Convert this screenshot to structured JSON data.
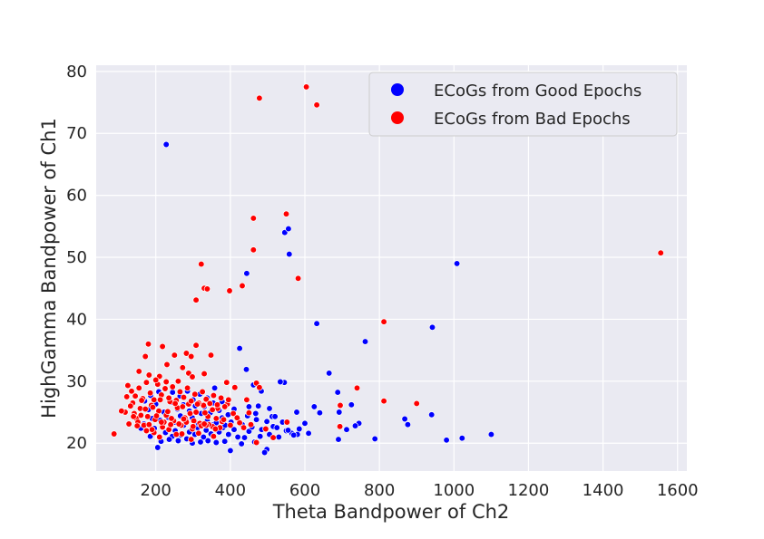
{
  "colors": {
    "plot_background": "#eaeaf2",
    "grid": "#ffffff",
    "good": "#0000ff",
    "bad": "#ff0000",
    "point_edge": "#ffffff"
  },
  "chart_data": {
    "type": "scatter",
    "title": "",
    "xlabel": "Theta Bandpower of Ch2",
    "ylabel": "HighGamma Bandpower of Ch1",
    "xlim": [
      40,
      1625
    ],
    "ylim": [
      15.5,
      81
    ],
    "xticks": [
      200,
      400,
      600,
      800,
      1000,
      1200,
      1400,
      1600
    ],
    "yticks": [
      20,
      30,
      40,
      50,
      60,
      70,
      80
    ],
    "grid": true,
    "legend_position": "top-right",
    "series": [
      {
        "name": "ECoGs from Good Epochs",
        "color": "#0000ff",
        "points": [
          [
            228,
            68.2
          ],
          [
            1008,
            49.0
          ],
          [
            546,
            54.0
          ],
          [
            556,
            54.6
          ],
          [
            558,
            50.5
          ],
          [
            444,
            47.4
          ],
          [
            632,
            39.3
          ],
          [
            942,
            38.7
          ],
          [
            762,
            36.4
          ],
          [
            425,
            35.3
          ],
          [
            443,
            31.9
          ],
          [
            665,
            31.3
          ],
          [
            545,
            29.8
          ],
          [
            534,
            29.9
          ],
          [
            462,
            29.4
          ],
          [
            483,
            28.4
          ],
          [
            688,
            28.2
          ],
          [
            578,
            25.0
          ],
          [
            625,
            25.9
          ],
          [
            640,
            24.9
          ],
          [
            692,
            25.0
          ],
          [
            725,
            26.2
          ],
          [
            745,
            23.2
          ],
          [
            735,
            22.8
          ],
          [
            868,
            23.9
          ],
          [
            876,
            23.0
          ],
          [
            940,
            24.6
          ],
          [
            1022,
            20.8
          ],
          [
            980,
            20.5
          ],
          [
            1100,
            21.4
          ],
          [
            788,
            20.7
          ],
          [
            712,
            22.2
          ],
          [
            690,
            20.6
          ],
          [
            600,
            23.2
          ],
          [
            610,
            21.6
          ],
          [
            580,
            21.4
          ],
          [
            565,
            21.6
          ],
          [
            550,
            22.0
          ],
          [
            530,
            21.0
          ],
          [
            515,
            22.7
          ],
          [
            505,
            21.4
          ],
          [
            498,
            19.0
          ],
          [
            492,
            18.5
          ],
          [
            480,
            21.1
          ],
          [
            465,
            20.2
          ],
          [
            450,
            21.9
          ],
          [
            438,
            20.9
          ],
          [
            430,
            19.9
          ],
          [
            420,
            21.0
          ],
          [
            410,
            22.2
          ],
          [
            400,
            18.8
          ],
          [
            395,
            21.4
          ],
          [
            385,
            20.3
          ],
          [
            380,
            22.5
          ],
          [
            370,
            21.8
          ],
          [
            362,
            20.1
          ],
          [
            355,
            23.0
          ],
          [
            348,
            21.5
          ],
          [
            340,
            20.4
          ],
          [
            335,
            22.1
          ],
          [
            328,
            21.0
          ],
          [
            320,
            20.2
          ],
          [
            312,
            22.5
          ],
          [
            305,
            21.4
          ],
          [
            298,
            20.0
          ],
          [
            290,
            21.8
          ],
          [
            283,
            20.7
          ],
          [
            275,
            22.9
          ],
          [
            268,
            21.3
          ],
          [
            260,
            20.4
          ],
          [
            252,
            22.0
          ],
          [
            244,
            21.1
          ],
          [
            236,
            20.6
          ],
          [
            226,
            21.7
          ],
          [
            214,
            20.3
          ],
          [
            205,
            19.3
          ],
          [
            196,
            22.4
          ],
          [
            185,
            21.1
          ],
          [
            168,
            23.1
          ],
          [
            160,
            22.4
          ],
          [
            150,
            23.6
          ],
          [
            142,
            24.2
          ],
          [
            180,
            25.4
          ],
          [
            190,
            24.0
          ],
          [
            200,
            26.3
          ],
          [
            212,
            23.7
          ],
          [
            222,
            25.0
          ],
          [
            233,
            24.2
          ],
          [
            242,
            26.6
          ],
          [
            250,
            23.4
          ],
          [
            258,
            25.5
          ],
          [
            266,
            24.4
          ],
          [
            274,
            26.2
          ],
          [
            282,
            23.6
          ],
          [
            290,
            25.2
          ],
          [
            298,
            24.1
          ],
          [
            306,
            26.0
          ],
          [
            314,
            23.2
          ],
          [
            322,
            24.8
          ],
          [
            330,
            25.9
          ],
          [
            338,
            23.6
          ],
          [
            346,
            24.9
          ],
          [
            354,
            26.5
          ],
          [
            362,
            23.3
          ],
          [
            370,
            25.3
          ],
          [
            378,
            24.1
          ],
          [
            386,
            22.9
          ],
          [
            394,
            24.6
          ],
          [
            402,
            23.4
          ],
          [
            410,
            25.5
          ],
          [
            420,
            24.0
          ],
          [
            432,
            23.0
          ],
          [
            446,
            24.4
          ],
          [
            458,
            22.6
          ],
          [
            470,
            23.8
          ],
          [
            484,
            22.2
          ],
          [
            498,
            23.5
          ],
          [
            512,
            24.3
          ],
          [
            525,
            22.5
          ],
          [
            540,
            23.4
          ],
          [
            555,
            22.1
          ],
          [
            570,
            21.3
          ],
          [
            585,
            22.3
          ],
          [
            245,
            28.2
          ],
          [
            265,
            27.6
          ],
          [
            285,
            28.4
          ],
          [
            300,
            27.0
          ],
          [
            318,
            27.9
          ],
          [
            338,
            27.3
          ],
          [
            358,
            28.9
          ],
          [
            378,
            26.7
          ],
          [
            208,
            28.3
          ],
          [
            186,
            27.7
          ],
          [
            170,
            26.8
          ],
          [
            158,
            25.5
          ],
          [
            450,
            25.9
          ],
          [
            475,
            26.0
          ],
          [
            505,
            25.6
          ],
          [
            520,
            24.3
          ],
          [
            468,
            24.8
          ]
        ]
      },
      {
        "name": "ECoGs from Bad Epochs",
        "color": "#ff0000",
        "points": [
          [
            604,
            77.5
          ],
          [
            632,
            74.6
          ],
          [
            478,
            75.7
          ],
          [
            1555,
            50.7
          ],
          [
            550,
            57.0
          ],
          [
            462,
            56.3
          ],
          [
            462,
            51.2
          ],
          [
            582,
            46.6
          ],
          [
            322,
            48.9
          ],
          [
            330,
            45.0
          ],
          [
            338,
            44.9
          ],
          [
            398,
            44.6
          ],
          [
            432,
            45.4
          ],
          [
            308,
            43.1
          ],
          [
            812,
            39.6
          ],
          [
            180,
            36.0
          ],
          [
            218,
            35.6
          ],
          [
            172,
            34.0
          ],
          [
            250,
            34.2
          ],
          [
            282,
            34.5
          ],
          [
            295,
            34.0
          ],
          [
            308,
            35.8
          ],
          [
            348,
            34.2
          ],
          [
            155,
            31.6
          ],
          [
            210,
            30.8
          ],
          [
            272,
            32.2
          ],
          [
            288,
            31.3
          ],
          [
            298,
            30.7
          ],
          [
            330,
            31.2
          ],
          [
            390,
            29.8
          ],
          [
            412,
            29.0
          ],
          [
            444,
            27.0
          ],
          [
            470,
            29.7
          ],
          [
            478,
            29.0
          ],
          [
            740,
            28.9
          ],
          [
            812,
            26.8
          ],
          [
            900,
            26.4
          ],
          [
            695,
            26.1
          ],
          [
            694,
            22.7
          ],
          [
            552,
            23.4
          ],
          [
            495,
            22.3
          ],
          [
            515,
            20.9
          ],
          [
            470,
            20.1
          ],
          [
            455,
            23.0
          ],
          [
            425,
            23.3
          ],
          [
            408,
            24.8
          ],
          [
            392,
            26.3
          ],
          [
            378,
            23.5
          ],
          [
            366,
            25.6
          ],
          [
            352,
            22.7
          ],
          [
            340,
            24.3
          ],
          [
            328,
            26.1
          ],
          [
            318,
            23.2
          ],
          [
            308,
            25.0
          ],
          [
            298,
            22.3
          ],
          [
            288,
            26.3
          ],
          [
            278,
            24.1
          ],
          [
            268,
            22.9
          ],
          [
            258,
            25.7
          ],
          [
            248,
            23.6
          ],
          [
            238,
            26.7
          ],
          [
            228,
            24.5
          ],
          [
            218,
            22.6
          ],
          [
            208,
            25.2
          ],
          [
            198,
            23.8
          ],
          [
            188,
            26.1
          ],
          [
            178,
            24.3
          ],
          [
            168,
            22.9
          ],
          [
            158,
            25.6
          ],
          [
            148,
            24.0
          ],
          [
            138,
            26.5
          ],
          [
            128,
            23.1
          ],
          [
            118,
            25.0
          ],
          [
            108,
            25.2
          ],
          [
            88,
            21.5
          ],
          [
            125,
            29.3
          ],
          [
            135,
            28.4
          ],
          [
            145,
            27.6
          ],
          [
            155,
            28.9
          ],
          [
            165,
            27.2
          ],
          [
            175,
            29.8
          ],
          [
            185,
            28.1
          ],
          [
            195,
            27.0
          ],
          [
            205,
            29.5
          ],
          [
            215,
            27.8
          ],
          [
            225,
            28.8
          ],
          [
            235,
            27.3
          ],
          [
            245,
            29.1
          ],
          [
            255,
            26.9
          ],
          [
            265,
            28.3
          ],
          [
            275,
            27.4
          ],
          [
            285,
            28.9
          ],
          [
            295,
            26.8
          ],
          [
            305,
            27.9
          ],
          [
            315,
            26.5
          ],
          [
            325,
            28.3
          ],
          [
            335,
            27.1
          ],
          [
            345,
            26.4
          ],
          [
            355,
            27.7
          ],
          [
            365,
            26.2
          ],
          [
            375,
            27.3
          ],
          [
            385,
            25.9
          ],
          [
            395,
            27.0
          ],
          [
            122,
            27.5
          ],
          [
            132,
            26.0
          ],
          [
            142,
            24.8
          ],
          [
            152,
            23.4
          ],
          [
            162,
            26.9
          ],
          [
            172,
            25.5
          ],
          [
            182,
            23.0
          ],
          [
            192,
            25.8
          ],
          [
            202,
            24.4
          ],
          [
            212,
            27.0
          ],
          [
            222,
            23.4
          ],
          [
            232,
            25.1
          ],
          [
            242,
            24.0
          ],
          [
            252,
            26.4
          ],
          [
            262,
            23.1
          ],
          [
            272,
            25.9
          ],
          [
            282,
            23.4
          ],
          [
            292,
            24.8
          ],
          [
            302,
            23.6
          ],
          [
            312,
            26.3
          ],
          [
            322,
            22.8
          ],
          [
            332,
            24.9
          ],
          [
            342,
            23.0
          ],
          [
            352,
            25.4
          ],
          [
            362,
            24.0
          ],
          [
            372,
            22.5
          ],
          [
            382,
            23.8
          ],
          [
            400,
            22.9
          ],
          [
            418,
            24.1
          ],
          [
            436,
            22.5
          ],
          [
            450,
            24.9
          ],
          [
            175,
            22.0
          ],
          [
            195,
            21.7
          ],
          [
            215,
            23.4
          ],
          [
            235,
            22.2
          ],
          [
            255,
            21.4
          ],
          [
            275,
            23.9
          ],
          [
            295,
            20.6
          ],
          [
            315,
            21.6
          ],
          [
            335,
            22.9
          ],
          [
            355,
            21.1
          ],
          [
            182,
            31.0
          ],
          [
            200,
            30.2
          ],
          [
            228,
            29.9
          ],
          [
            260,
            30.0
          ],
          [
            230,
            32.7
          ],
          [
            140,
            24.3
          ],
          [
            150,
            22.8
          ],
          [
            160,
            24.5
          ],
          [
            190,
            22.2
          ],
          [
            210,
            21.0
          ],
          [
            240,
            23.0
          ],
          [
            270,
            21.5
          ],
          [
            300,
            22.7
          ],
          [
            330,
            23.1
          ],
          [
            360,
            22.3
          ]
        ]
      }
    ]
  }
}
